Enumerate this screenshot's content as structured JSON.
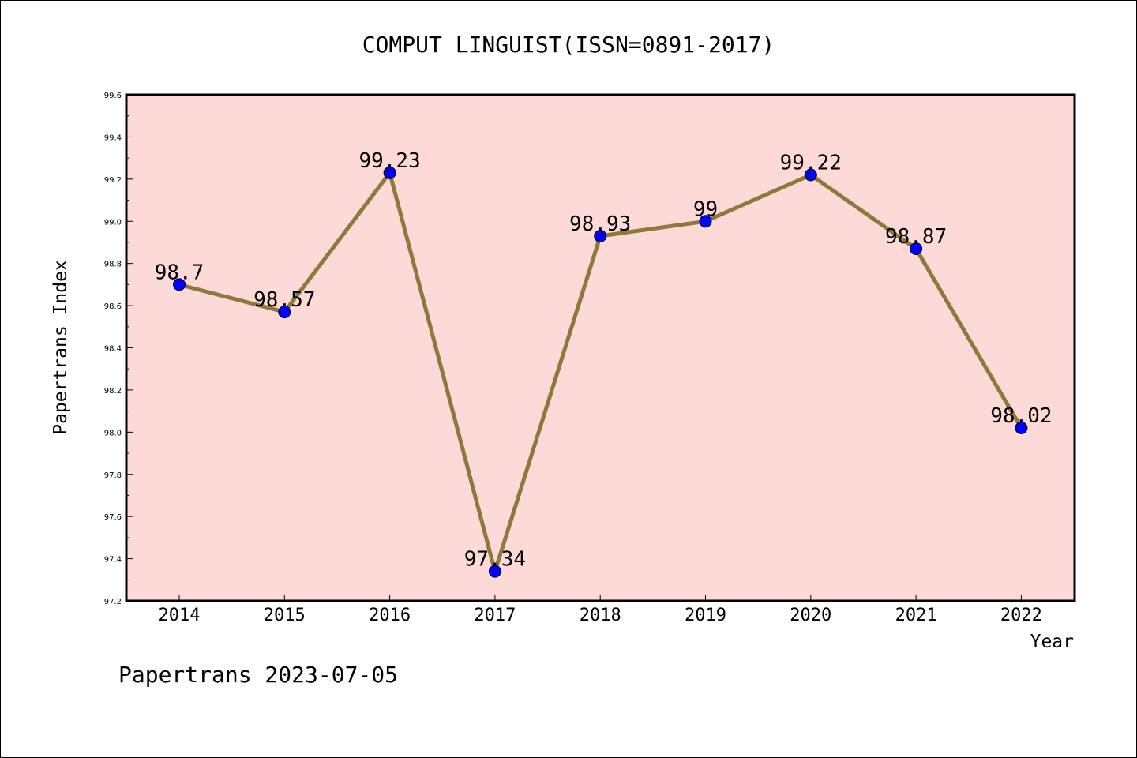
{
  "chart_data": {
    "type": "line",
    "title": "COMPUT LINGUIST(ISSN=0891-2017)",
    "xlabel": "Year",
    "ylabel": "Papertrans Index",
    "categories": [
      "2014",
      "2015",
      "2016",
      "2017",
      "2018",
      "2019",
      "2020",
      "2021",
      "2022"
    ],
    "series": [
      {
        "values": [
          98.7,
          98.57,
          99.23,
          97.34,
          98.93,
          99,
          99.22,
          98.87,
          98.02
        ],
        "data_labels": [
          "98.7",
          "98.57",
          "99.23",
          "97.34",
          "98.93",
          "99",
          "99.22",
          "98.87",
          "98.02"
        ],
        "line_color": "#8b7a3a",
        "marker_color": "#0000ff"
      }
    ],
    "ylim": [
      97.2,
      99.6
    ],
    "yticks": [
      "97.2",
      "97.4",
      "97.6",
      "97.8",
      "98.0",
      "98.2",
      "98.4",
      "98.6",
      "98.8",
      "99.0",
      "99.2",
      "99.4",
      "99.6"
    ],
    "plot_background": "#fddad7",
    "grid": false,
    "legend": "none"
  },
  "footer": {
    "text": "Papertrans 2023-07-05"
  }
}
